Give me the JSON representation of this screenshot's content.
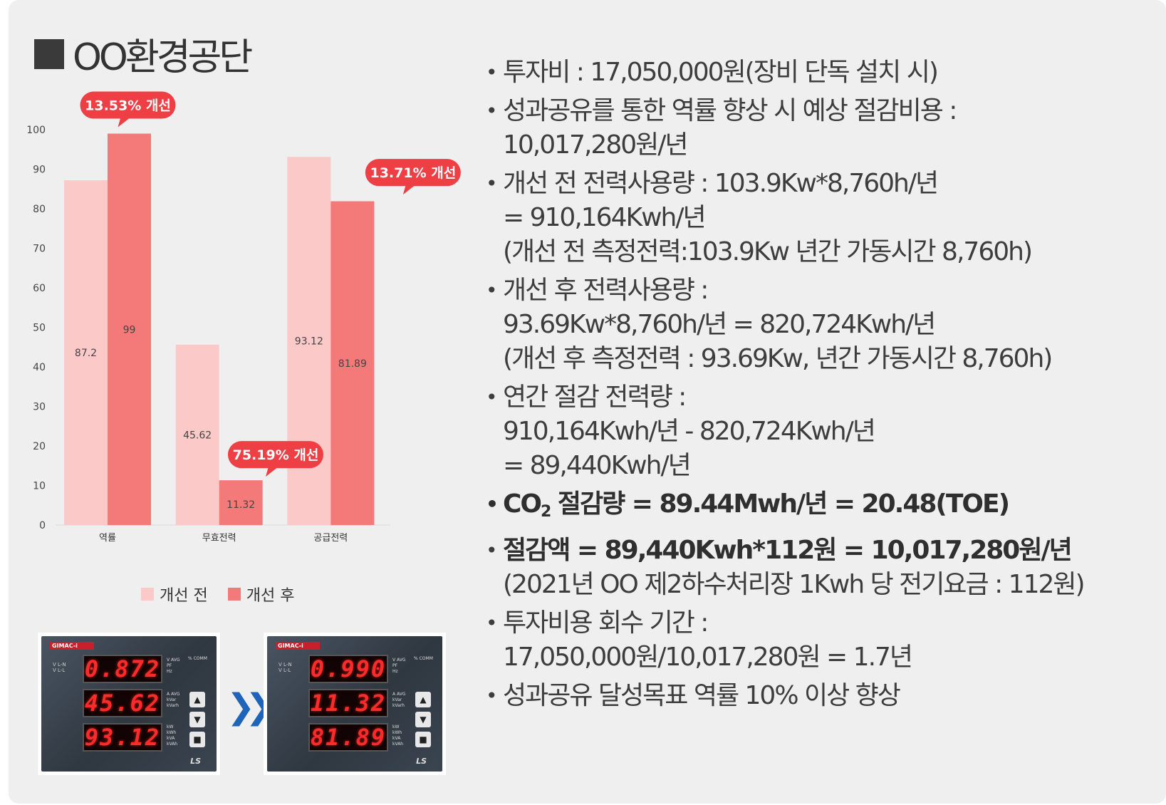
{
  "title": "OO환경공단",
  "chart_data": {
    "type": "bar",
    "categories": [
      "역률",
      "무효전력",
      "공급전력"
    ],
    "series": [
      {
        "name": "개선 전",
        "values": [
          87.2,
          45.62,
          93.12
        ],
        "color": "#fcc9c9"
      },
      {
        "name": "개선 후",
        "values": [
          99,
          11.32,
          81.89
        ],
        "color": "#f47a7a"
      }
    ],
    "ylim": [
      0,
      100
    ],
    "yticks": [
      0,
      10,
      20,
      30,
      40,
      50,
      60,
      70,
      80,
      90,
      100
    ],
    "data_labels": [
      "87.2",
      "99",
      "45.62",
      "11.32",
      "93.12",
      "81.89"
    ],
    "annotations": [
      {
        "text": "13.53% 개선",
        "category": "역률"
      },
      {
        "text": "75.19% 개선",
        "category": "무효전력"
      },
      {
        "text": "13.71% 개선",
        "category": "공급전력"
      }
    ],
    "callout_color": "#ee3f45",
    "legend_position": "bottom",
    "grid": false
  },
  "meters": {
    "before": {
      "brand": "GIMAC-i",
      "values": [
        "0.872",
        "45.62",
        "93.12"
      ],
      "logo": "LS"
    },
    "after": {
      "brand": "GIMAC-i",
      "values": [
        "0.990",
        "11.32",
        "81.89"
      ],
      "logo": "LS"
    },
    "arrow_icon": "double-chevron-right-icon"
  },
  "bullets": [
    {
      "lines": [
        "투자비 : 17,050,000원(장비 단독 설치 시)"
      ]
    },
    {
      "lines": [
        "성과공유를 통한 역률 향상 시 예상 절감비용 :",
        "10,017,280원/년"
      ]
    },
    {
      "lines": [
        "개선 전 전력사용량 : 103.9Kw*8,760h/년",
        "= 910,164Kwh/년",
        "(개선 전 측정전력:103.9Kw 년간 가동시간 8,760h)"
      ]
    },
    {
      "lines": [
        "개선 후 전력사용량 :",
        "93.69Kw*8,760h/년 = 820,724Kwh/년",
        "(개선 후 측정전력 : 93.69Kw, 년간 가동시간 8,760h)"
      ]
    },
    {
      "lines": [
        "연간 절감 전력량 :",
        "910,164Kwh/년 - 820,724Kwh/년",
        "= 89,440Kwh/년"
      ]
    },
    {
      "co2": {
        "pre": "CO",
        "sub": "2",
        "post": " 절감량 = 89.44Mwh/년 = 20.48(TOE)"
      }
    },
    {
      "lines": [
        "절감액 = 89,440Kwh*112원 = 10,017,280원/년"
      ],
      "note": "(2021년 OO 제2하수처리장 1Kwh 당 전기요금 : 112원)"
    },
    {
      "lines": [
        "투자비용 회수 기간 :",
        "17,050,000원/10,017,280원 = 1.7년"
      ]
    },
    {
      "lines": [
        "성과공유 달성목표 역률 10% 이상 향상"
      ]
    }
  ]
}
